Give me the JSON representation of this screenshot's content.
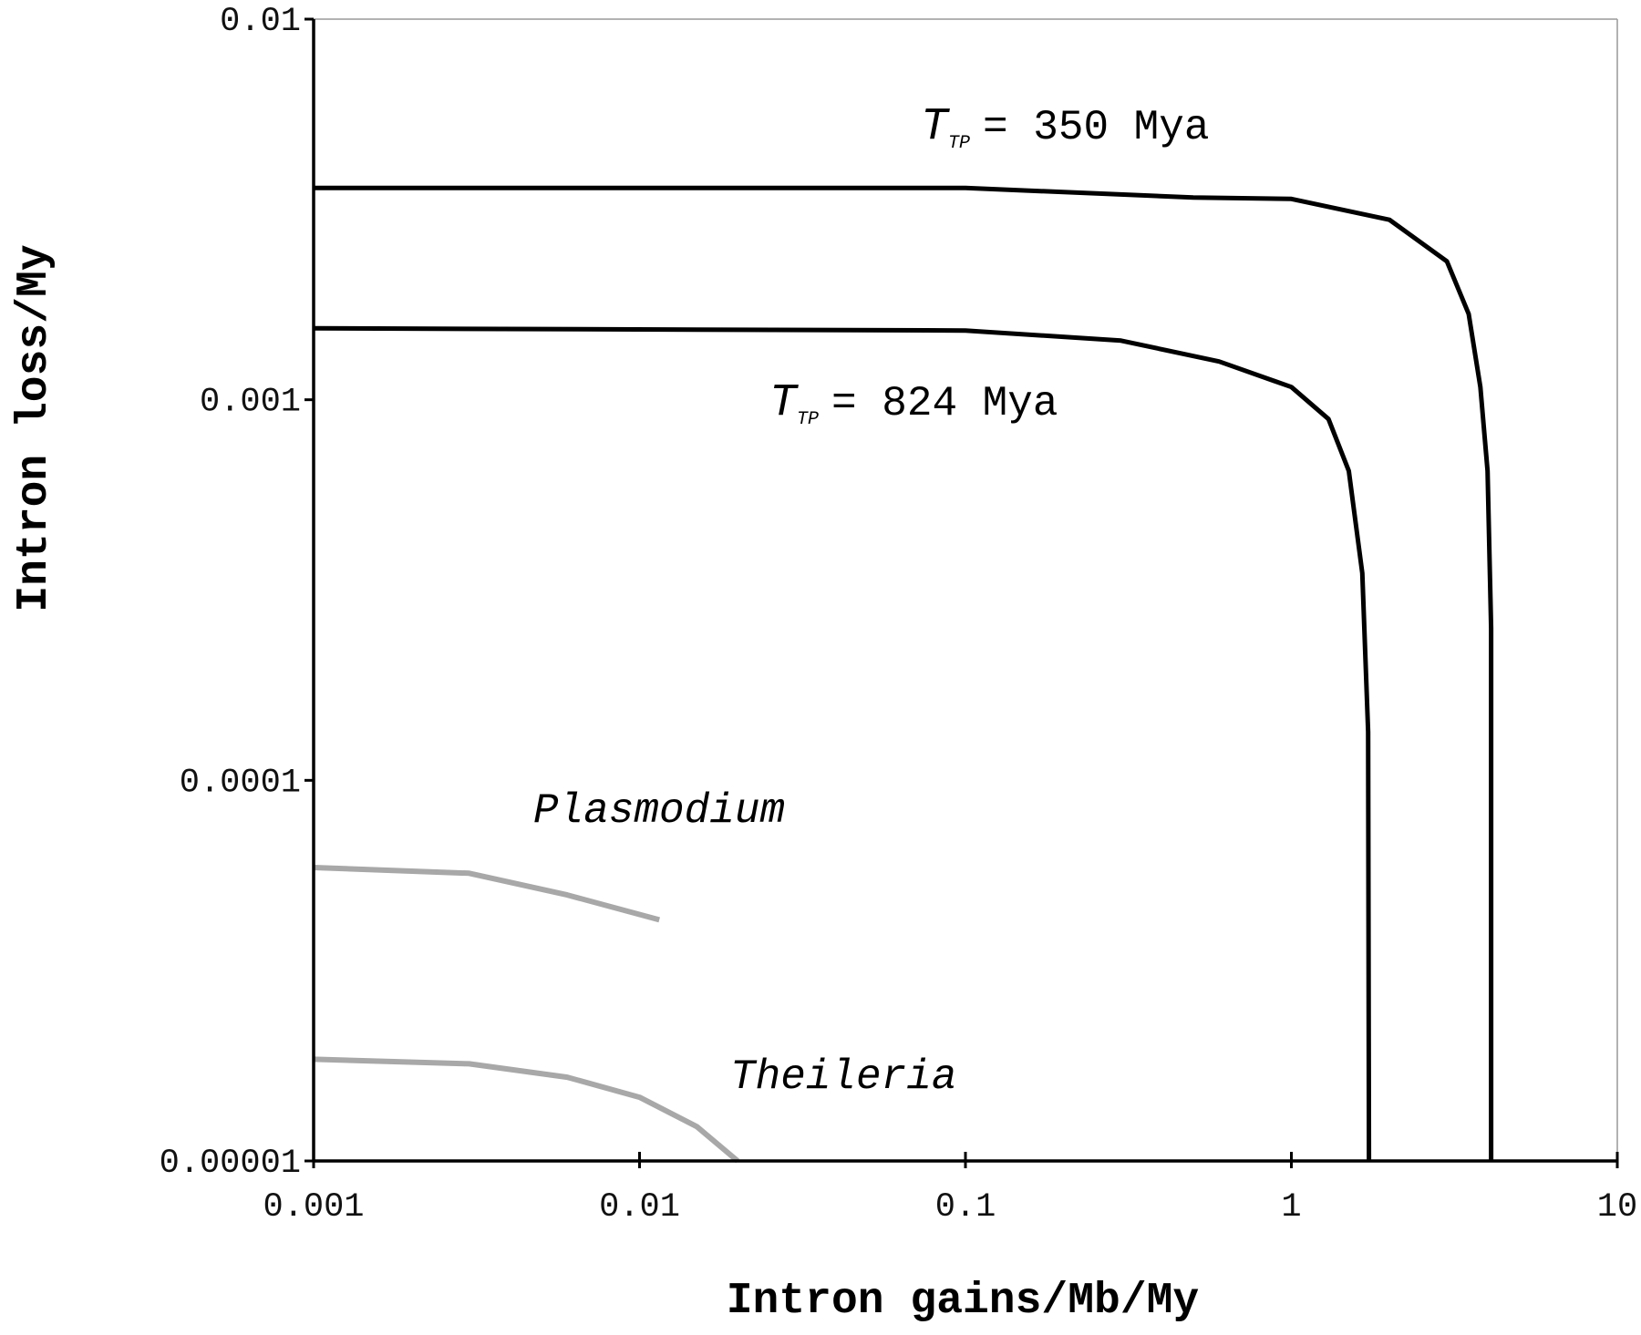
{
  "chart_data": {
    "type": "line",
    "xlabel": "Intron gains/Mb/My",
    "ylabel": "Intron loss/My",
    "xscale": "log",
    "yscale": "log",
    "xlim": [
      0.001,
      10
    ],
    "ylim": [
      1e-05,
      0.01
    ],
    "xticks": [
      0.001,
      0.01,
      0.1,
      1,
      10
    ],
    "yticks": [
      {
        "value": 1e-05,
        "label": "0.00001"
      },
      0.0001,
      0.001,
      0.01
    ],
    "series": [
      {
        "label": {
          "symbol": "T",
          "subscript": "TP",
          "text": "= 350 Mya"
        },
        "color": "#000000",
        "x": [
          0.001,
          0.1,
          0.5,
          1,
          2,
          3,
          3.5,
          3.8,
          4.0,
          4.1,
          4.1
        ],
        "values": [
          0.0036,
          0.0036,
          0.0034,
          0.00337,
          0.00297,
          0.00231,
          0.00168,
          0.00108,
          0.00065,
          0.000251,
          1e-05
        ]
      },
      {
        "label": {
          "symbol": "T",
          "subscript": "TP",
          "text": "= 824 Mya"
        },
        "color": "#000000",
        "x": [
          0.001,
          0.1,
          0.3,
          0.6,
          1,
          1.3,
          1.5,
          1.65,
          1.72,
          1.73
        ],
        "values": [
          0.00154,
          0.00152,
          0.00143,
          0.00126,
          0.00108,
          0.00089,
          0.00065,
          0.00035,
          0.000134,
          1e-05
        ]
      },
      {
        "name": "Plasmodium",
        "color": "#a8a8a8",
        "x": [
          0.001,
          0.003,
          0.006,
          0.0115
        ],
        "values": [
          5.9e-05,
          5.7e-05,
          5e-05,
          4.3e-05
        ]
      },
      {
        "name": "Theileria",
        "color": "#a8a8a8",
        "x": [
          0.001,
          0.003,
          0.006,
          0.01,
          0.015,
          0.02
        ],
        "values": [
          1.85e-05,
          1.8e-05,
          1.66e-05,
          1.47e-05,
          1.23e-05,
          1e-05
        ]
      }
    ]
  }
}
